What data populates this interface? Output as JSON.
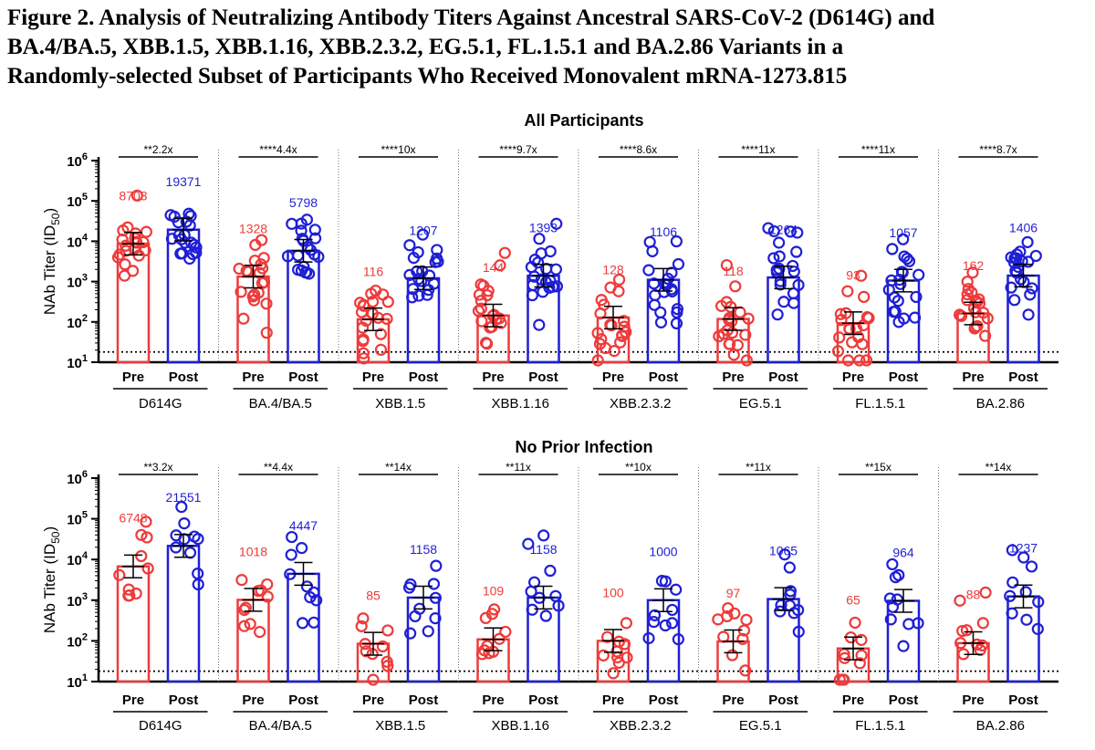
{
  "figure": {
    "title_lines": [
      "Figure 2. Analysis of Neutralizing Antibody Titers Against Ancestral SARS-CoV-2 (D614G) and",
      "BA.4/BA.5, XBB.1.5, XBB.1.16, XBB.2.3.2, EG.5.1, FL.1.5.1 and BA.2.86 Variants in a",
      "Randomly-selected Subset of Participants Who Received Monovalent mRNA-1273.815"
    ]
  },
  "colors": {
    "pre": "#ee3b3b",
    "post": "#1f1fd6",
    "axis": "#000000"
  },
  "chart_data": [
    {
      "type": "bar",
      "title": "All Participants",
      "ylabel": "NAb Titer (ID50)",
      "yscale": "log",
      "ylim": [
        10,
        1000000
      ],
      "yticks": [
        "10^1",
        "10^2",
        "10^3",
        "10^4",
        "10^5",
        "10^6"
      ],
      "lloq": 18,
      "bar_labels": [
        "Pre",
        "Post"
      ],
      "groups": [
        {
          "variant": "D614G",
          "comparison": "**2.2x",
          "pre": 8703,
          "post": 19371
        },
        {
          "variant": "BA.4/BA.5",
          "comparison": "****4.4x",
          "pre": 1328,
          "post": 5798
        },
        {
          "variant": "XBB.1.5",
          "comparison": "****10x",
          "pre": 116,
          "post": 1207
        },
        {
          "variant": "XBB.1.16",
          "comparison": "****9.7x",
          "pre": 144,
          "post": 1393
        },
        {
          "variant": "XBB.2.3.2",
          "comparison": "****8.6x",
          "pre": 128,
          "post": 1106
        },
        {
          "variant": "EG.5.1",
          "comparison": "****11x",
          "pre": 118,
          "post": 1264
        },
        {
          "variant": "FL.1.5.1",
          "comparison": "****11x",
          "pre": 93,
          "post": 1057
        },
        {
          "variant": "BA.2.86",
          "comparison": "****8.7x",
          "pre": 162,
          "post": 1406
        }
      ]
    },
    {
      "type": "bar",
      "title": "No Prior Infection",
      "ylabel": "NAb Titer (ID50)",
      "yscale": "log",
      "ylim": [
        10,
        1000000
      ],
      "yticks": [
        "10^1",
        "10^2",
        "10^3",
        "10^4",
        "10^5",
        "10^6"
      ],
      "lloq": 18,
      "bar_labels": [
        "Pre",
        "Post"
      ],
      "groups": [
        {
          "variant": "D614G",
          "comparison": "**3.2x",
          "pre": 6748,
          "post": 21551
        },
        {
          "variant": "BA.4/BA.5",
          "comparison": "**4.4x",
          "pre": 1018,
          "post": 4447
        },
        {
          "variant": "XBB.1.5",
          "comparison": "**14x",
          "pre": 85,
          "post": 1158
        },
        {
          "variant": "XBB.1.16",
          "comparison": "**11x",
          "pre": 109,
          "post": 1158
        },
        {
          "variant": "XBB.2.3.2",
          "comparison": "**10x",
          "pre": 100,
          "post": 1000
        },
        {
          "variant": "EG.5.1",
          "comparison": "**11x",
          "pre": 97,
          "post": 1065
        },
        {
          "variant": "FL.1.5.1",
          "comparison": "**15x",
          "pre": 65,
          "post": 964
        },
        {
          "variant": "BA.2.86",
          "comparison": "**14x",
          "pre": 88,
          "post": 1237
        }
      ]
    }
  ]
}
